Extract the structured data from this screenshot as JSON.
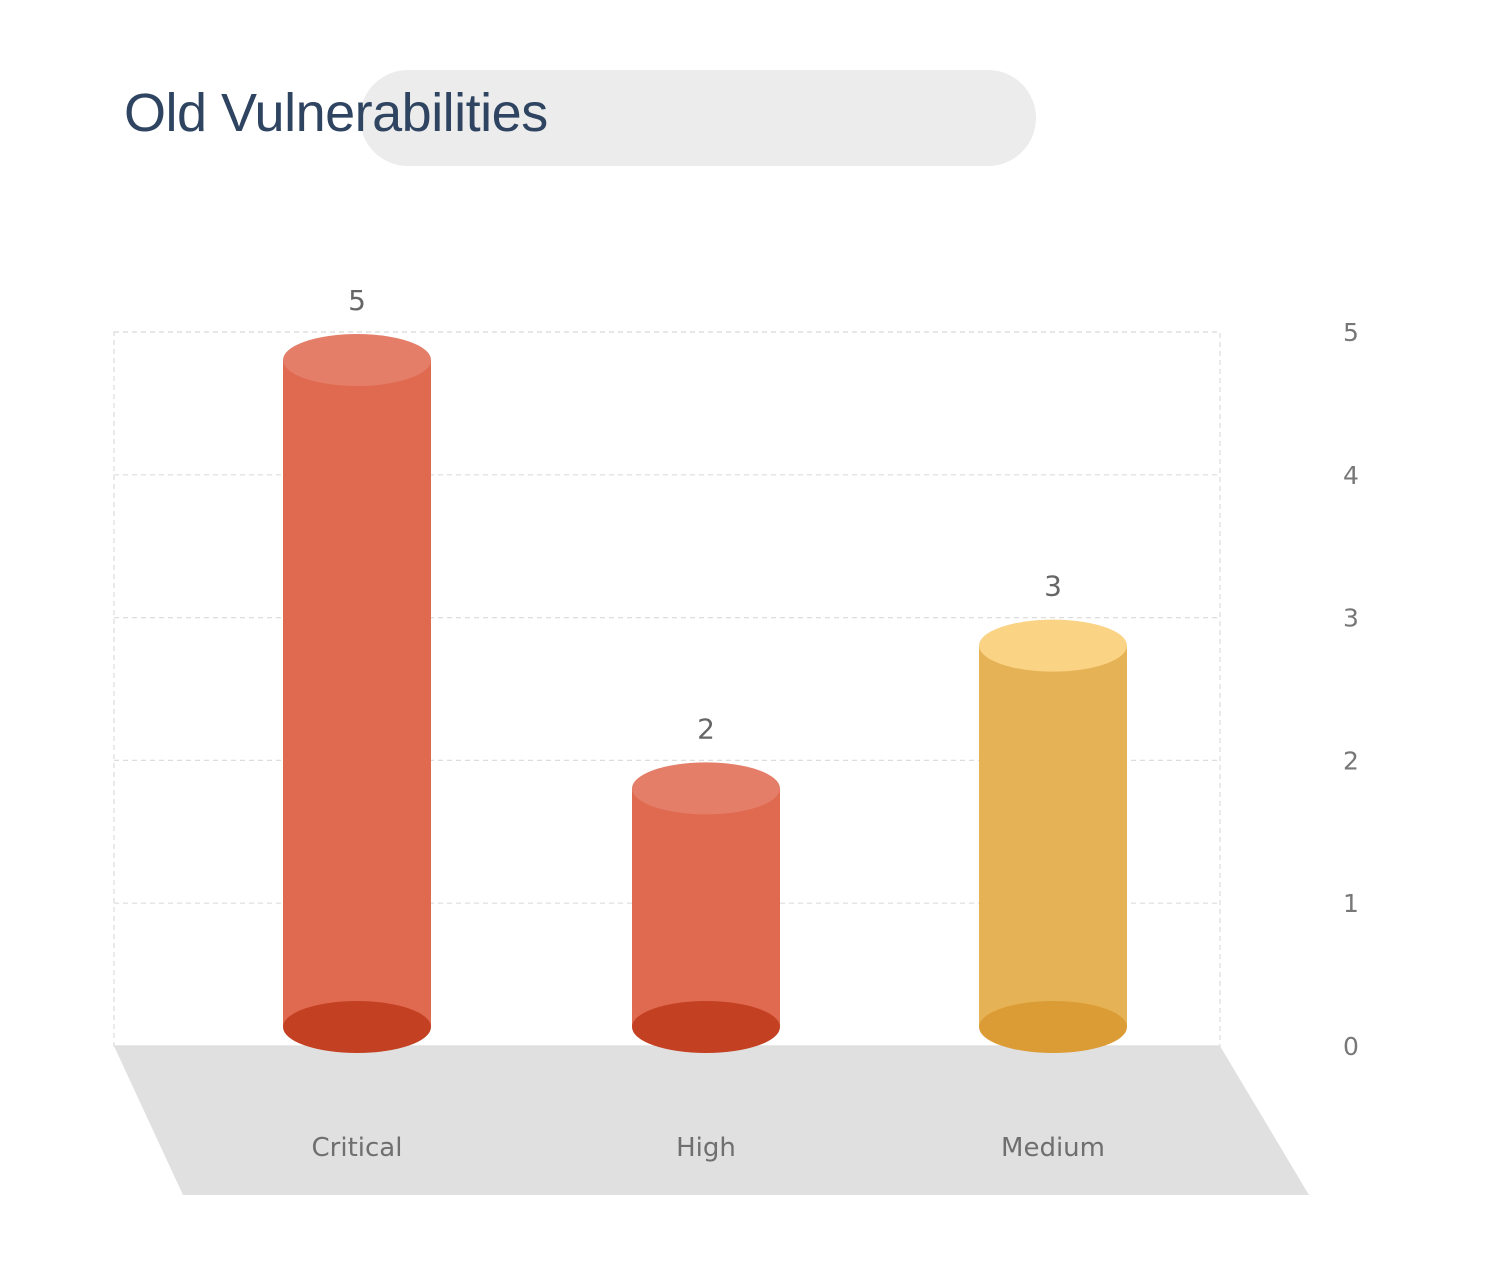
{
  "header": {
    "title": "Old Vulnerabilities"
  },
  "chart_data": {
    "type": "bar",
    "title": "Old Vulnerabilities",
    "categories": [
      "Critical",
      "High",
      "Medium"
    ],
    "values": [
      5,
      2,
      3
    ],
    "data_labels": [
      "5",
      "2",
      "3"
    ],
    "ylim": [
      0,
      5
    ],
    "yticks": [
      0,
      1,
      2,
      3,
      4,
      5
    ],
    "ytick_labels": [
      "0",
      "1",
      "2",
      "3",
      "4",
      "5"
    ],
    "y_axis_side": "right",
    "grid": true,
    "bar_style": "3d-cylinder",
    "colors": {
      "Critical": {
        "body": "#e06a50",
        "top": "#e47e69",
        "bottom": "#c44022"
      },
      "High": {
        "body": "#e06a50",
        "top": "#e47e69",
        "bottom": "#c44022"
      },
      "Medium": {
        "body": "#e6b256",
        "top": "#fad384",
        "bottom": "#dc9c35"
      }
    },
    "floor_color": "#e0e0e0",
    "grid_color": "#dddddd",
    "label_color": "#666666"
  }
}
